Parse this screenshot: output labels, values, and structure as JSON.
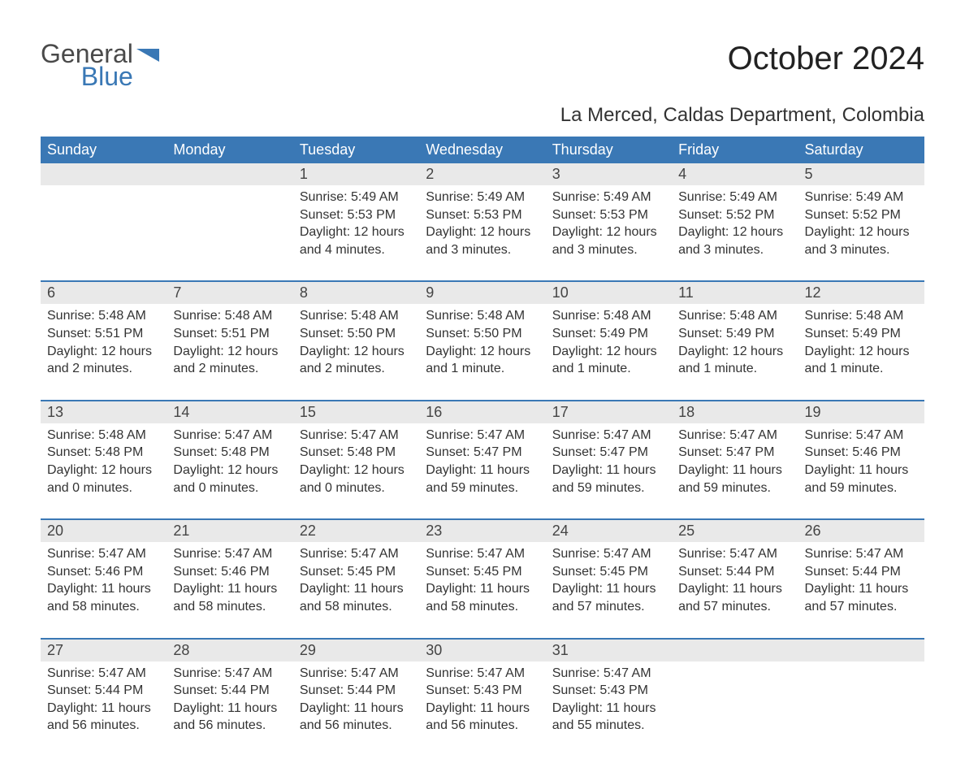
{
  "brand": {
    "word1": "General",
    "word2": "Blue",
    "icon_color": "#3a78b5"
  },
  "title": "October 2024",
  "subtitle": "La Merced, Caldas Department, Colombia",
  "colors": {
    "header_bg": "#3a78b5",
    "header_text": "#ffffff",
    "daynum_bg": "#e9e9e9",
    "text": "#333333",
    "bg": "#ffffff"
  },
  "daysOfWeek": [
    "Sunday",
    "Monday",
    "Tuesday",
    "Wednesday",
    "Thursday",
    "Friday",
    "Saturday"
  ],
  "weeks": [
    [
      null,
      null,
      {
        "n": "1",
        "sr": "Sunrise: 5:49 AM",
        "ss": "Sunset: 5:53 PM",
        "dl": "Daylight: 12 hours and 4 minutes."
      },
      {
        "n": "2",
        "sr": "Sunrise: 5:49 AM",
        "ss": "Sunset: 5:53 PM",
        "dl": "Daylight: 12 hours and 3 minutes."
      },
      {
        "n": "3",
        "sr": "Sunrise: 5:49 AM",
        "ss": "Sunset: 5:53 PM",
        "dl": "Daylight: 12 hours and 3 minutes."
      },
      {
        "n": "4",
        "sr": "Sunrise: 5:49 AM",
        "ss": "Sunset: 5:52 PM",
        "dl": "Daylight: 12 hours and 3 minutes."
      },
      {
        "n": "5",
        "sr": "Sunrise: 5:49 AM",
        "ss": "Sunset: 5:52 PM",
        "dl": "Daylight: 12 hours and 3 minutes."
      }
    ],
    [
      {
        "n": "6",
        "sr": "Sunrise: 5:48 AM",
        "ss": "Sunset: 5:51 PM",
        "dl": "Daylight: 12 hours and 2 minutes."
      },
      {
        "n": "7",
        "sr": "Sunrise: 5:48 AM",
        "ss": "Sunset: 5:51 PM",
        "dl": "Daylight: 12 hours and 2 minutes."
      },
      {
        "n": "8",
        "sr": "Sunrise: 5:48 AM",
        "ss": "Sunset: 5:50 PM",
        "dl": "Daylight: 12 hours and 2 minutes."
      },
      {
        "n": "9",
        "sr": "Sunrise: 5:48 AM",
        "ss": "Sunset: 5:50 PM",
        "dl": "Daylight: 12 hours and 1 minute."
      },
      {
        "n": "10",
        "sr": "Sunrise: 5:48 AM",
        "ss": "Sunset: 5:49 PM",
        "dl": "Daylight: 12 hours and 1 minute."
      },
      {
        "n": "11",
        "sr": "Sunrise: 5:48 AM",
        "ss": "Sunset: 5:49 PM",
        "dl": "Daylight: 12 hours and 1 minute."
      },
      {
        "n": "12",
        "sr": "Sunrise: 5:48 AM",
        "ss": "Sunset: 5:49 PM",
        "dl": "Daylight: 12 hours and 1 minute."
      }
    ],
    [
      {
        "n": "13",
        "sr": "Sunrise: 5:48 AM",
        "ss": "Sunset: 5:48 PM",
        "dl": "Daylight: 12 hours and 0 minutes."
      },
      {
        "n": "14",
        "sr": "Sunrise: 5:47 AM",
        "ss": "Sunset: 5:48 PM",
        "dl": "Daylight: 12 hours and 0 minutes."
      },
      {
        "n": "15",
        "sr": "Sunrise: 5:47 AM",
        "ss": "Sunset: 5:48 PM",
        "dl": "Daylight: 12 hours and 0 minutes."
      },
      {
        "n": "16",
        "sr": "Sunrise: 5:47 AM",
        "ss": "Sunset: 5:47 PM",
        "dl": "Daylight: 11 hours and 59 minutes."
      },
      {
        "n": "17",
        "sr": "Sunrise: 5:47 AM",
        "ss": "Sunset: 5:47 PM",
        "dl": "Daylight: 11 hours and 59 minutes."
      },
      {
        "n": "18",
        "sr": "Sunrise: 5:47 AM",
        "ss": "Sunset: 5:47 PM",
        "dl": "Daylight: 11 hours and 59 minutes."
      },
      {
        "n": "19",
        "sr": "Sunrise: 5:47 AM",
        "ss": "Sunset: 5:46 PM",
        "dl": "Daylight: 11 hours and 59 minutes."
      }
    ],
    [
      {
        "n": "20",
        "sr": "Sunrise: 5:47 AM",
        "ss": "Sunset: 5:46 PM",
        "dl": "Daylight: 11 hours and 58 minutes."
      },
      {
        "n": "21",
        "sr": "Sunrise: 5:47 AM",
        "ss": "Sunset: 5:46 PM",
        "dl": "Daylight: 11 hours and 58 minutes."
      },
      {
        "n": "22",
        "sr": "Sunrise: 5:47 AM",
        "ss": "Sunset: 5:45 PM",
        "dl": "Daylight: 11 hours and 58 minutes."
      },
      {
        "n": "23",
        "sr": "Sunrise: 5:47 AM",
        "ss": "Sunset: 5:45 PM",
        "dl": "Daylight: 11 hours and 58 minutes."
      },
      {
        "n": "24",
        "sr": "Sunrise: 5:47 AM",
        "ss": "Sunset: 5:45 PM",
        "dl": "Daylight: 11 hours and 57 minutes."
      },
      {
        "n": "25",
        "sr": "Sunrise: 5:47 AM",
        "ss": "Sunset: 5:44 PM",
        "dl": "Daylight: 11 hours and 57 minutes."
      },
      {
        "n": "26",
        "sr": "Sunrise: 5:47 AM",
        "ss": "Sunset: 5:44 PM",
        "dl": "Daylight: 11 hours and 57 minutes."
      }
    ],
    [
      {
        "n": "27",
        "sr": "Sunrise: 5:47 AM",
        "ss": "Sunset: 5:44 PM",
        "dl": "Daylight: 11 hours and 56 minutes."
      },
      {
        "n": "28",
        "sr": "Sunrise: 5:47 AM",
        "ss": "Sunset: 5:44 PM",
        "dl": "Daylight: 11 hours and 56 minutes."
      },
      {
        "n": "29",
        "sr": "Sunrise: 5:47 AM",
        "ss": "Sunset: 5:44 PM",
        "dl": "Daylight: 11 hours and 56 minutes."
      },
      {
        "n": "30",
        "sr": "Sunrise: 5:47 AM",
        "ss": "Sunset: 5:43 PM",
        "dl": "Daylight: 11 hours and 56 minutes."
      },
      {
        "n": "31",
        "sr": "Sunrise: 5:47 AM",
        "ss": "Sunset: 5:43 PM",
        "dl": "Daylight: 11 hours and 55 minutes."
      },
      null,
      null
    ]
  ]
}
